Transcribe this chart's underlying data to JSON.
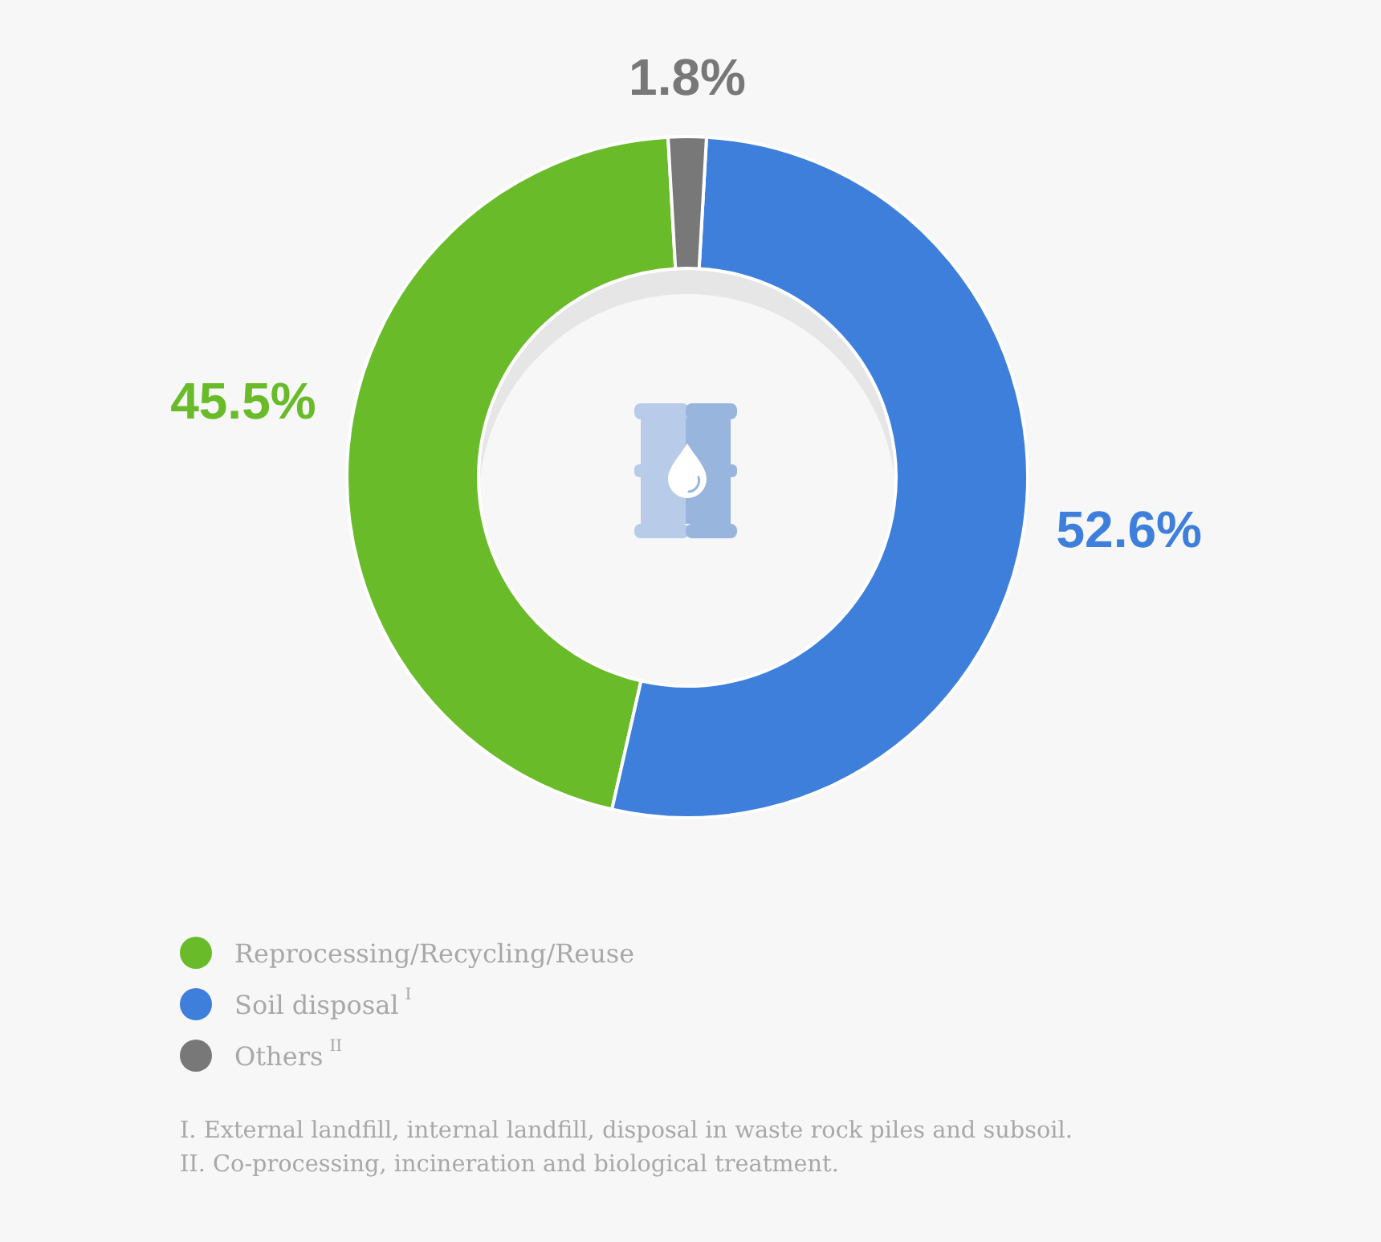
{
  "chart_data": {
    "type": "donut",
    "categories": [
      "Reprocessing/Recycling/Reuse",
      "Soil disposal$^{I}$",
      "Others$^{II}$"
    ],
    "values": [
      45.5,
      52.6,
      1.8
    ],
    "colors": [
      "#6abb29",
      "#3d7fdb",
      "#787878"
    ],
    "value_labels": [
      "45.5%",
      "52.6%",
      "1.8%"
    ],
    "legend": "bottom left",
    "annotations": [
      "I. External landfill, internal landfill, disposal in waste rock piles and subsoil.",
      "II. Co-processing, incineration and biological treatment."
    ]
  }
}
